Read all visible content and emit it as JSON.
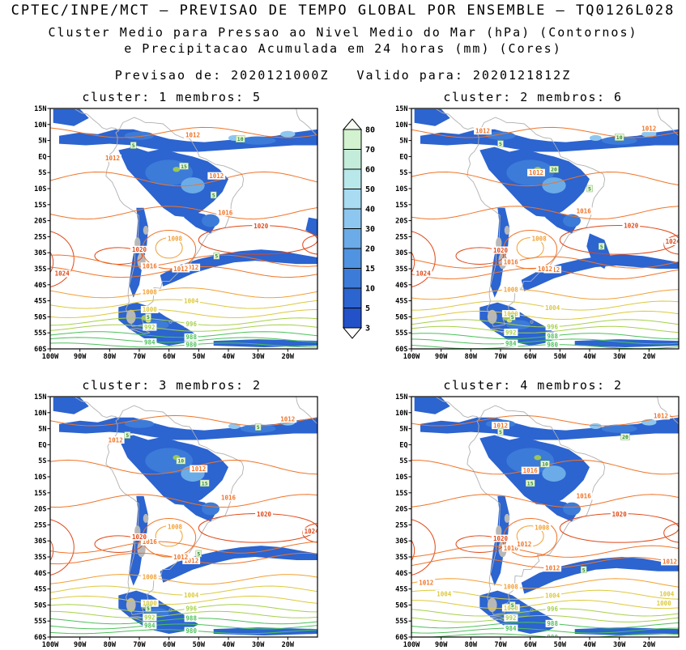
{
  "header": {
    "title": "CPTEC/INPE/MCT — PREVISAO DE TEMPO GLOBAL POR ENSEMBLE — TQ0126L028",
    "subtitle1": "Cluster Medio para Pressao ao Nivel Medio do Mar (hPa) (Contornos)",
    "subtitle2": "e Precipitacao Acumulada em 24 horas (mm) (Cores)",
    "init_label": "Previsao de:",
    "init_time": "2020121000Z",
    "valid_label": "Valido para:",
    "valid_time": "2020121812Z"
  },
  "panels": [
    {
      "title": "cluster: 1   membros: 5"
    },
    {
      "title": "cluster: 2   membros: 6"
    },
    {
      "title": "cluster: 3   membros: 2"
    },
    {
      "title": "cluster: 4   membros: 2"
    }
  ],
  "axes": {
    "lat": [
      "15N",
      "10N",
      "5N",
      "EQ",
      "5S",
      "10S",
      "15S",
      "20S",
      "25S",
      "30S",
      "35S",
      "40S",
      "45S",
      "50S",
      "55S",
      "60S"
    ],
    "lon": [
      "100W",
      "90W",
      "80W",
      "70W",
      "60W",
      "50W",
      "40W",
      "30W",
      "20W"
    ]
  },
  "colorbar": {
    "boundaries": [
      80,
      70,
      60,
      50,
      40,
      30,
      20,
      15,
      10,
      5,
      3
    ],
    "colors_top_to_bottom": [
      "#f7fdf5",
      "#d3f2cf",
      "#c3edda",
      "#b9e8ea",
      "#a9dbf2",
      "#8dc7f0",
      "#6bace8",
      "#5093e0",
      "#3c7bd8",
      "#2c64d0",
      "#2351c8",
      "#ffffff"
    ]
  },
  "chart_data": {
    "type": "heatmap",
    "title": "CPTEC/INPE/MCT — PREVISAO DE TEMPO GLOBAL POR ENSEMBLE — TQ0126L028",
    "shading_variable": "Precipitacao Acumulada em 24 horas (mm)",
    "contour_variable": "Pressao ao Nivel Medio do Mar (hPa)",
    "init": "2020121000Z",
    "valid": "2020121812Z",
    "lon_range_deg": [
      -100,
      -10
    ],
    "lat_range_deg": [
      -60,
      15
    ],
    "precip_levels_mm": [
      3,
      5,
      10,
      15,
      20,
      30,
      40,
      50,
      60,
      70,
      80
    ],
    "isobars_hPa": [
      980,
      984,
      988,
      992,
      996,
      1000,
      1004,
      1008,
      1012,
      1016,
      1020,
      1024
    ],
    "southern_isobars": [
      {
        "value": 1016,
        "lat": -32.5
      },
      {
        "value": 1012,
        "lat": -36
      },
      {
        "value": 1008,
        "lat": -42.5
      },
      {
        "value": 1004,
        "lat": -46
      },
      {
        "value": 1000,
        "lat": -49
      },
      {
        "value": 996,
        "lat": -51.5
      },
      {
        "value": 992,
        "lat": -53.5
      },
      {
        "value": 988,
        "lat": -55.5
      },
      {
        "value": 984,
        "lat": -57.2
      },
      {
        "value": 980,
        "lat": -58.8
      }
    ],
    "panels": [
      {
        "cluster": 1,
        "members": 5,
        "southern_lat_offset": 0,
        "band_lat_shift": 0,
        "contour_labels": [
          {
            "v": 1012,
            "lon": -52,
            "lat": 6.8
          },
          {
            "v": 1012,
            "lon": -79,
            "lat": -0.5
          },
          {
            "v": 1012,
            "lon": -44,
            "lat": -6
          },
          {
            "v": 1016,
            "lon": -41,
            "lat": -17.5
          },
          {
            "v": 1020,
            "lon": -29,
            "lat": -21.7
          },
          {
            "v": 1020,
            "lon": -70,
            "lat": -29
          },
          {
            "v": 1008,
            "lon": -58,
            "lat": -25.6
          },
          {
            "v": 1012,
            "lon": -56,
            "lat": -35
          },
          {
            "v": 1024,
            "lon": -96,
            "lat": -36.5
          }
        ],
        "precip_labels": [
          {
            "v": 5,
            "lon": -72,
            "lat": 3.5
          },
          {
            "v": 15,
            "lon": -55,
            "lat": -3
          },
          {
            "v": 5,
            "lon": -45,
            "lat": -12
          },
          {
            "v": 10,
            "lon": -36,
            "lat": 5.5
          },
          {
            "v": 5,
            "lon": -44,
            "lat": -31
          },
          {
            "v": 5,
            "lon": -67,
            "lat": -50
          }
        ]
      },
      {
        "cluster": 2,
        "members": 6,
        "southern_lat_offset": 0.5,
        "band_lat_shift": 1.5,
        "contour_labels": [
          {
            "v": 1012,
            "lon": -20,
            "lat": 8.8
          },
          {
            "v": 1012,
            "lon": -76,
            "lat": 8
          },
          {
            "v": 1012,
            "lon": -58,
            "lat": -5
          },
          {
            "v": 1016,
            "lon": -42,
            "lat": -17
          },
          {
            "v": 1020,
            "lon": -26,
            "lat": -21.5
          },
          {
            "v": 1024,
            "lon": -12,
            "lat": -26.5
          },
          {
            "v": 1020,
            "lon": -70,
            "lat": -29.2
          },
          {
            "v": 1008,
            "lon": -57,
            "lat": -25.6
          },
          {
            "v": 1012,
            "lon": -55,
            "lat": -35
          },
          {
            "v": 1024,
            "lon": -96,
            "lat": -36.5
          }
        ],
        "precip_labels": [
          {
            "v": 5,
            "lon": -70,
            "lat": 4
          },
          {
            "v": 20,
            "lon": -52,
            "lat": -4
          },
          {
            "v": 5,
            "lon": -40,
            "lat": -10
          },
          {
            "v": 10,
            "lon": -30,
            "lat": 6
          },
          {
            "v": 5,
            "lon": -36,
            "lat": -28
          },
          {
            "v": 5,
            "lon": -66,
            "lat": -50
          }
        ]
      },
      {
        "cluster": 3,
        "members": 2,
        "southern_lat_offset": -0.5,
        "band_lat_shift": 2.5,
        "contour_labels": [
          {
            "v": 1012,
            "lon": -20,
            "lat": 8
          },
          {
            "v": 1012,
            "lon": -78,
            "lat": 1.5
          },
          {
            "v": 1012,
            "lon": -50,
            "lat": -7.5
          },
          {
            "v": 1016,
            "lon": -40,
            "lat": -16.5
          },
          {
            "v": 1020,
            "lon": -28,
            "lat": -21.7
          },
          {
            "v": 1024,
            "lon": -12,
            "lat": -27
          },
          {
            "v": 1020,
            "lon": -70,
            "lat": -28.8
          },
          {
            "v": 1008,
            "lon": -58,
            "lat": -25.6
          },
          {
            "v": 1012,
            "lon": -56,
            "lat": -35
          }
        ],
        "precip_labels": [
          {
            "v": 5,
            "lon": -74,
            "lat": 3
          },
          {
            "v": 10,
            "lon": -56,
            "lat": -5
          },
          {
            "v": 15,
            "lon": -48,
            "lat": -12
          },
          {
            "v": 5,
            "lon": -30,
            "lat": 5.5
          },
          {
            "v": 5,
            "lon": -50,
            "lat": -34
          },
          {
            "v": 5,
            "lon": -67,
            "lat": -51
          }
        ]
      },
      {
        "cluster": 4,
        "members": 2,
        "southern_lat_offset": 0.8,
        "band_lat_shift": 6,
        "contour_labels": [
          {
            "v": 1012,
            "lon": -16,
            "lat": 9
          },
          {
            "v": 1012,
            "lon": -70,
            "lat": 6
          },
          {
            "v": 1016,
            "lon": -60,
            "lat": -8
          },
          {
            "v": 1016,
            "lon": -42,
            "lat": -16
          },
          {
            "v": 1020,
            "lon": -30,
            "lat": -21.7
          },
          {
            "v": 1020,
            "lon": -70,
            "lat": -29.2
          },
          {
            "v": 1012,
            "lon": -62,
            "lat": -31
          },
          {
            "v": 1008,
            "lon": -56,
            "lat": -25.8
          },
          {
            "v": 1012,
            "lon": -13,
            "lat": -36.5
          },
          {
            "v": 1004,
            "lon": -14,
            "lat": -46.5
          },
          {
            "v": 1000,
            "lon": -15,
            "lat": -49.5
          },
          {
            "v": 1004,
            "lon": -89,
            "lat": -46.5
          },
          {
            "v": 1012,
            "lon": -95,
            "lat": -43
          }
        ],
        "precip_labels": [
          {
            "v": 20,
            "lon": -28,
            "lat": 2.5
          },
          {
            "v": 5,
            "lon": -70,
            "lat": 4
          },
          {
            "v": 10,
            "lon": -55,
            "lat": -6
          },
          {
            "v": 15,
            "lon": -60,
            "lat": -12
          },
          {
            "v": 5,
            "lon": -42,
            "lat": -39
          },
          {
            "v": 5,
            "lon": -66,
            "lat": -50
          }
        ]
      }
    ]
  }
}
